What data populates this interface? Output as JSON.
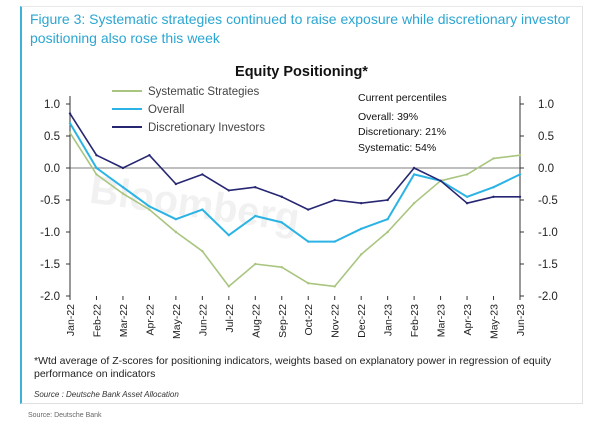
{
  "figure": {
    "title": "Figure 3: Systematic strategies continued to raise exposure while discretionary investor positioning also rose this week",
    "footnote": "*Wtd average of Z-scores for positioning indicators, weights based on explanatory power in regression of equity performance on indicators",
    "source_inner": "Source : Deutsche Bank Asset Allocation",
    "source_outer": "Source: Deutsche Bank"
  },
  "watermark": "Bloomberg",
  "percentiles": {
    "header": "Current percentiles",
    "overall": "Overall: 39%",
    "discretionary": "Discretionary: 21%",
    "systematic": "Systematic: 54%"
  },
  "colors": {
    "systematic": "#a9c57f",
    "overall": "#2ab3e4",
    "discretionary": "#262673",
    "accent": "#2ba6d2"
  },
  "chart_data": {
    "type": "line",
    "title": "Equity Positioning*",
    "xlabel": "",
    "ylabel": "",
    "ylim": [
      -2.0,
      1.0
    ],
    "yticks": [
      "1.0",
      "0.5",
      "0.0",
      "-0.5",
      "-1.0",
      "-1.5",
      "-2.0"
    ],
    "xticks": [
      "Jan-22",
      "Feb-22",
      "Mar-22",
      "Apr-22",
      "May-22",
      "Jun-22",
      "Jul-22",
      "Aug-22",
      "Sep-22",
      "Oct-22",
      "Nov-22",
      "Dec-22",
      "Jan-23",
      "Feb-23",
      "Mar-23",
      "Apr-23",
      "May-23",
      "Jun-23"
    ],
    "legend_position": "top-left",
    "grid": false,
    "series": [
      {
        "name": "Systematic Strategies",
        "x": [
          "Jan-22",
          "Feb-22",
          "Mar-22",
          "Apr-22",
          "May-22",
          "Jun-22",
          "Jul-22",
          "Aug-22",
          "Sep-22",
          "Oct-22",
          "Nov-22",
          "Dec-22",
          "Jan-23",
          "Feb-23",
          "Mar-23",
          "Apr-23",
          "May-23",
          "Jun-23"
        ],
        "values": [
          0.55,
          -0.1,
          -0.4,
          -0.65,
          -1.0,
          -1.3,
          -1.85,
          -1.5,
          -1.55,
          -1.8,
          -1.85,
          -1.35,
          -1.0,
          -0.55,
          -0.2,
          -0.1,
          0.15,
          0.2
        ]
      },
      {
        "name": "Overall",
        "x": [
          "Jan-22",
          "Feb-22",
          "Mar-22",
          "Apr-22",
          "May-22",
          "Jun-22",
          "Jul-22",
          "Aug-22",
          "Sep-22",
          "Oct-22",
          "Nov-22",
          "Dec-22",
          "Jan-23",
          "Feb-23",
          "Mar-23",
          "Apr-23",
          "May-23",
          "Jun-23"
        ],
        "values": [
          0.7,
          0.0,
          -0.3,
          -0.6,
          -0.8,
          -0.65,
          -1.05,
          -0.75,
          -0.85,
          -1.15,
          -1.15,
          -0.95,
          -0.8,
          -0.1,
          -0.2,
          -0.45,
          -0.3,
          -0.1
        ]
      },
      {
        "name": "Discretionary Investors",
        "x": [
          "Jan-22",
          "Feb-22",
          "Mar-22",
          "Apr-22",
          "May-22",
          "Jun-22",
          "Jul-22",
          "Aug-22",
          "Sep-22",
          "Oct-22",
          "Nov-22",
          "Dec-22",
          "Jan-23",
          "Feb-23",
          "Mar-23",
          "Apr-23",
          "May-23",
          "Jun-23"
        ],
        "values": [
          0.85,
          0.2,
          0.0,
          0.2,
          -0.25,
          -0.1,
          -0.35,
          -0.3,
          -0.45,
          -0.65,
          -0.5,
          -0.55,
          -0.5,
          0.0,
          -0.2,
          -0.55,
          -0.45,
          -0.45
        ]
      }
    ]
  }
}
